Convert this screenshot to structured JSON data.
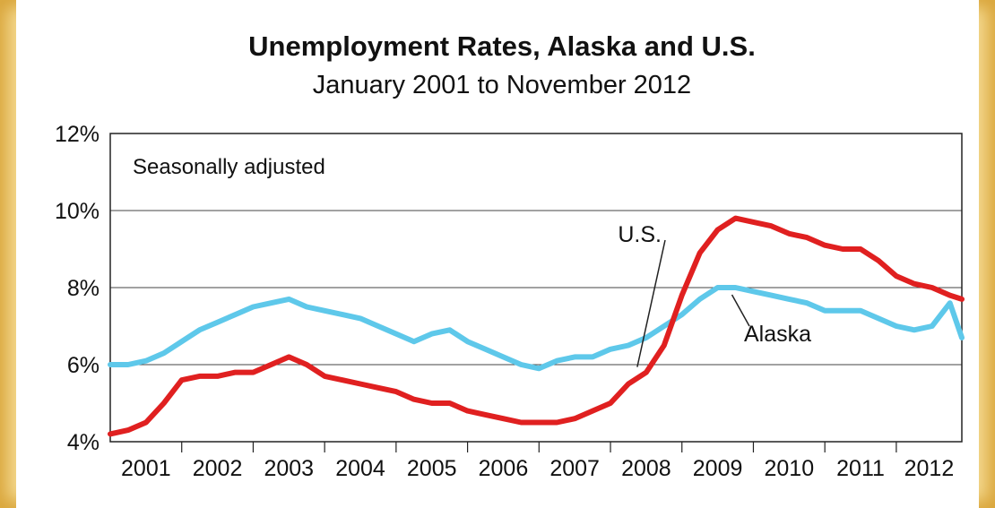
{
  "chart_data": {
    "type": "line",
    "title": "Unemployment Rates, Alaska and U.S.",
    "subtitle": "January 2001 to November 2012",
    "annotation": "Seasonally adjusted",
    "ylim": [
      4,
      12
    ],
    "y_ticks": [
      "4%",
      "6%",
      "8%",
      "10%",
      "12%"
    ],
    "y_tick_values": [
      4,
      6,
      8,
      10,
      12
    ],
    "x_range": [
      2001.0,
      2012.917
    ],
    "x_ticks": [
      "2001",
      "2002",
      "2003",
      "2004",
      "2005",
      "2006",
      "2007",
      "2008",
      "2009",
      "2010",
      "2011",
      "2012"
    ],
    "grid": true,
    "series": [
      {
        "name": "U.S.",
        "color": "#e02020",
        "x": [
          2001.0,
          2001.25,
          2001.5,
          2001.75,
          2002.0,
          2002.25,
          2002.5,
          2002.75,
          2003.0,
          2003.25,
          2003.5,
          2003.75,
          2004.0,
          2004.25,
          2004.5,
          2004.75,
          2005.0,
          2005.25,
          2005.5,
          2005.75,
          2006.0,
          2006.25,
          2006.5,
          2006.75,
          2007.0,
          2007.25,
          2007.5,
          2007.75,
          2008.0,
          2008.25,
          2008.5,
          2008.75,
          2009.0,
          2009.25,
          2009.5,
          2009.75,
          2010.0,
          2010.25,
          2010.5,
          2010.75,
          2011.0,
          2011.25,
          2011.5,
          2011.75,
          2012.0,
          2012.25,
          2012.5,
          2012.75,
          2012.917
        ],
        "values": [
          4.2,
          4.3,
          4.5,
          5.0,
          5.6,
          5.7,
          5.7,
          5.8,
          5.8,
          6.0,
          6.2,
          6.0,
          5.7,
          5.6,
          5.5,
          5.4,
          5.3,
          5.1,
          5.0,
          5.0,
          4.8,
          4.7,
          4.6,
          4.5,
          4.5,
          4.5,
          4.6,
          4.8,
          5.0,
          5.5,
          5.8,
          6.5,
          7.8,
          8.9,
          9.5,
          9.8,
          9.7,
          9.6,
          9.4,
          9.3,
          9.1,
          9.0,
          9.0,
          8.7,
          8.3,
          8.1,
          8.0,
          7.8,
          7.7
        ]
      },
      {
        "name": "Alaska",
        "color": "#5ec8ea",
        "x": [
          2001.0,
          2001.25,
          2001.5,
          2001.75,
          2002.0,
          2002.25,
          2002.5,
          2002.75,
          2003.0,
          2003.25,
          2003.5,
          2003.75,
          2004.0,
          2004.25,
          2004.5,
          2004.75,
          2005.0,
          2005.25,
          2005.5,
          2005.75,
          2006.0,
          2006.25,
          2006.5,
          2006.75,
          2007.0,
          2007.25,
          2007.5,
          2007.75,
          2008.0,
          2008.25,
          2008.5,
          2008.75,
          2009.0,
          2009.25,
          2009.5,
          2009.75,
          2010.0,
          2010.25,
          2010.5,
          2010.75,
          2011.0,
          2011.25,
          2011.5,
          2011.75,
          2012.0,
          2012.25,
          2012.5,
          2012.75,
          2012.917
        ],
        "values": [
          6.0,
          6.0,
          6.1,
          6.3,
          6.6,
          6.9,
          7.1,
          7.3,
          7.5,
          7.6,
          7.7,
          7.5,
          7.4,
          7.3,
          7.2,
          7.0,
          6.8,
          6.6,
          6.8,
          6.9,
          6.6,
          6.4,
          6.2,
          6.0,
          5.9,
          6.1,
          6.2,
          6.2,
          6.4,
          6.5,
          6.7,
          7.0,
          7.3,
          7.7,
          8.0,
          8.0,
          7.9,
          7.8,
          7.7,
          7.6,
          7.4,
          7.4,
          7.4,
          7.2,
          7.0,
          6.9,
          7.0,
          7.6,
          6.7
        ]
      }
    ]
  }
}
